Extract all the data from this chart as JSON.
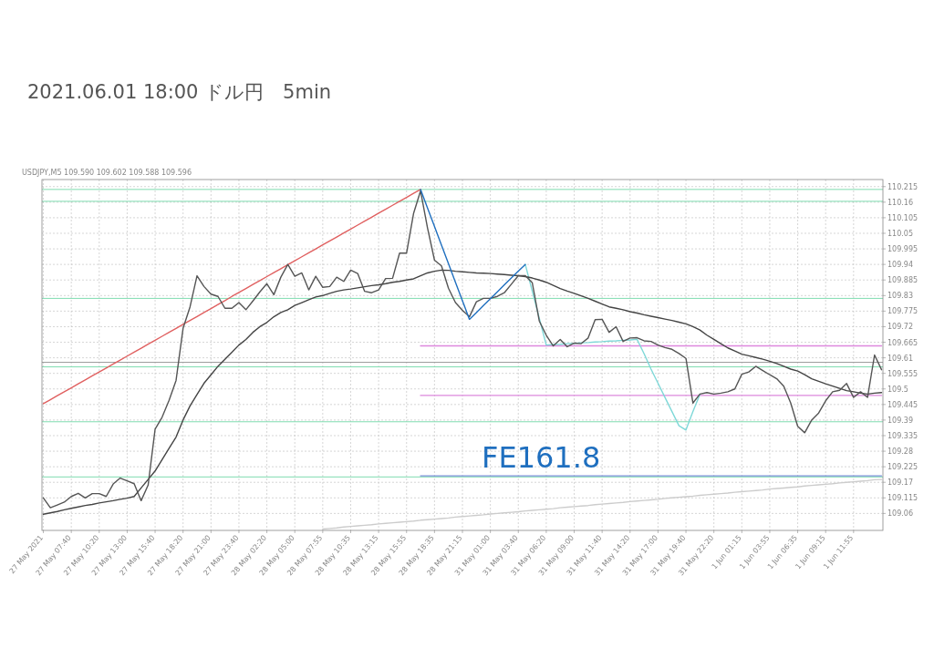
{
  "chart_data": {
    "type": "line",
    "title": "2021.06.01 18:00 ドル円　5min",
    "annotations": [
      "FE161.8",
      "USDJPY,M5 109.590 109.602 109.588 109.596"
    ],
    "categories": [
      "27 May 2021",
      null,
      null,
      null,
      "27 May 07:40",
      null,
      null,
      null,
      "27 May 10:20",
      null,
      null,
      null,
      "27 May 13:00",
      null,
      null,
      null,
      "27 May 15:40",
      null,
      null,
      null,
      "27 May 18:20",
      null,
      null,
      null,
      "27 May 21:00",
      null,
      null,
      null,
      "27 May 23:40",
      null,
      null,
      null,
      "28 May 02:20",
      null,
      null,
      null,
      "28 May 05:00",
      null,
      null,
      null,
      "28 May 07:55",
      null,
      null,
      null,
      "28 May 10:35",
      null,
      null,
      null,
      "28 May 13:15",
      null,
      null,
      null,
      "28 May 15:55",
      null,
      null,
      null,
      "28 May 18:35",
      null,
      null,
      null,
      "28 May 21:15",
      null,
      null,
      null,
      "31 May 01:00",
      null,
      null,
      null,
      "31 May 03:40",
      null,
      null,
      null,
      "31 May 06:20",
      null,
      null,
      null,
      "31 May 09:00",
      null,
      null,
      null,
      "31 May 11:40",
      null,
      null,
      null,
      "31 May 14:20",
      null,
      null,
      null,
      "31 May 17:00",
      null,
      null,
      null,
      "31 May 19:40",
      null,
      null,
      null,
      "31 May 22:20",
      null,
      null,
      null,
      "1 Jun 01:15",
      null,
      null,
      null,
      "1 Jun 03:55",
      null,
      null,
      null,
      "1 Jun 06:35",
      null,
      null,
      null,
      "1 Jun 09:15",
      null,
      null,
      null,
      "1 Jun 11:55",
      null,
      null,
      null,
      null
    ],
    "ylim": [
      109.0,
      110.24
    ],
    "yticks": [
      109.06,
      109.115,
      109.17,
      109.225,
      109.28,
      109.335,
      109.39,
      109.445,
      109.5,
      109.555,
      109.61,
      109.665,
      109.72,
      109.775,
      109.83,
      109.885,
      109.94,
      109.995,
      110.05,
      110.105,
      110.16,
      110.215
    ],
    "grid": true,
    "ref_lines": [
      {
        "axis": "y",
        "value": 110.205,
        "color": "#7fdcb0"
      },
      {
        "axis": "y",
        "value": 110.163,
        "color": "#7fdcb0"
      },
      {
        "axis": "y",
        "value": 109.82,
        "color": "#7fdcb0"
      },
      {
        "axis": "y",
        "value": 109.578,
        "color": "#7fdcb0"
      },
      {
        "axis": "y",
        "value": 109.384,
        "color": "#7fdcb0"
      },
      {
        "axis": "y",
        "value": 109.189,
        "color": "#7fdcb0"
      },
      {
        "axis": "y",
        "value": 109.594,
        "color": "#999999"
      }
    ],
    "series": [
      {
        "color": "#cccccc",
        "values": [
          null,
          null,
          null,
          null,
          null,
          null,
          null,
          null,
          null,
          null,
          null,
          null,
          null,
          null,
          null,
          null,
          null,
          null,
          null,
          null,
          null,
          null,
          null,
          null,
          null,
          null,
          null,
          null,
          null,
          null,
          null,
          null,
          null,
          null,
          null,
          null,
          null,
          null,
          null,
          null,
          109.005,
          109.007,
          109.009,
          109.012,
          109.014,
          109.016,
          109.018,
          109.02,
          109.023,
          109.025,
          109.027,
          109.029,
          109.031,
          109.033,
          109.036,
          109.038,
          109.04,
          109.042,
          109.044,
          109.047,
          109.049,
          109.051,
          109.053,
          109.055,
          109.058,
          109.06,
          109.062,
          109.064,
          109.066,
          109.069,
          109.071,
          109.073,
          109.075,
          109.077,
          109.08,
          109.082,
          109.084,
          109.086,
          109.088,
          109.091,
          109.093,
          109.095,
          109.097,
          109.099,
          109.102,
          109.104,
          109.106,
          109.108,
          109.11,
          109.113,
          109.115,
          109.117,
          109.119,
          109.121,
          109.124,
          109.126,
          109.128,
          109.13,
          109.132,
          109.135,
          109.137,
          109.139,
          109.141,
          109.143,
          109.146,
          109.148,
          109.15,
          109.152,
          109.154,
          109.157,
          109.159,
          109.161,
          109.163,
          109.165,
          109.168,
          109.17,
          109.172,
          109.174,
          109.176,
          109.179,
          109.18
        ]
      },
      {
        "color": "#dd88dd",
        "values": [
          null,
          null,
          null,
          null,
          null,
          null,
          null,
          null,
          null,
          null,
          null,
          null,
          null,
          null,
          null,
          null,
          null,
          null,
          null,
          null,
          null,
          null,
          null,
          null,
          null,
          null,
          null,
          null,
          null,
          null,
          null,
          null,
          null,
          null,
          null,
          null,
          null,
          null,
          null,
          null,
          null,
          null,
          null,
          null,
          null,
          null,
          null,
          null,
          null,
          null,
          null,
          null,
          null,
          null,
          109.652,
          109.652,
          109.652,
          109.652,
          109.652,
          109.652,
          109.652,
          109.652,
          109.652,
          109.652,
          109.652,
          109.652,
          109.652,
          109.652,
          109.652,
          109.652,
          109.652,
          109.652,
          109.652,
          109.652,
          109.652,
          109.652,
          109.652,
          109.652,
          109.652,
          109.652,
          109.652,
          109.652,
          109.652,
          109.652,
          109.652,
          109.652,
          109.652,
          109.652,
          109.652,
          109.652,
          109.652,
          109.652,
          109.652,
          109.652,
          109.652,
          109.652,
          109.652,
          109.652,
          109.652,
          109.652,
          109.652,
          109.652,
          109.652,
          109.652,
          109.652,
          109.652,
          109.652,
          109.652,
          109.652,
          109.652,
          109.652,
          109.652,
          109.652,
          109.652,
          109.652,
          109.652,
          109.652,
          109.652,
          109.652,
          109.652,
          109.652
        ]
      },
      {
        "color": "#dd88dd",
        "values": [
          null,
          null,
          null,
          null,
          null,
          null,
          null,
          null,
          null,
          null,
          null,
          null,
          null,
          null,
          null,
          null,
          null,
          null,
          null,
          null,
          null,
          null,
          null,
          null,
          null,
          null,
          null,
          null,
          null,
          null,
          null,
          null,
          null,
          null,
          null,
          null,
          null,
          null,
          null,
          null,
          null,
          null,
          null,
          null,
          null,
          null,
          null,
          null,
          null,
          null,
          null,
          null,
          null,
          null,
          109.477,
          109.477,
          109.477,
          109.477,
          109.477,
          109.477,
          109.477,
          109.477,
          109.477,
          109.477,
          109.477,
          109.477,
          109.477,
          109.477,
          109.477,
          109.477,
          109.477,
          109.477,
          109.477,
          109.477,
          109.477,
          109.477,
          109.477,
          109.477,
          109.477,
          109.477,
          109.477,
          109.477,
          109.477,
          109.477,
          109.477,
          109.477,
          109.477,
          109.477,
          109.477,
          109.477,
          109.477,
          109.477,
          109.477,
          109.477,
          109.477,
          109.477,
          109.477,
          109.477,
          109.477,
          109.477,
          109.477,
          109.477,
          109.477,
          109.477,
          109.477,
          109.477,
          109.477,
          109.477,
          109.477,
          109.477,
          109.477,
          109.477,
          109.477,
          109.477,
          109.477,
          109.477,
          109.477,
          109.477,
          109.477,
          109.477,
          109.477
        ]
      },
      {
        "color": "#7a8fd8",
        "values": [
          null,
          null,
          null,
          null,
          null,
          null,
          null,
          null,
          null,
          null,
          null,
          null,
          null,
          null,
          null,
          null,
          null,
          null,
          null,
          null,
          null,
          null,
          null,
          null,
          null,
          null,
          null,
          null,
          null,
          null,
          null,
          null,
          null,
          null,
          null,
          null,
          null,
          null,
          null,
          null,
          null,
          null,
          null,
          null,
          null,
          null,
          null,
          null,
          null,
          null,
          null,
          null,
          null,
          null,
          109.193,
          109.193,
          109.193,
          109.193,
          109.193,
          109.193,
          109.193,
          109.193,
          109.193,
          109.193,
          109.193,
          109.193,
          109.193,
          109.193,
          109.193,
          109.193,
          109.193,
          109.193,
          109.193,
          109.193,
          109.193,
          109.193,
          109.193,
          109.193,
          109.193,
          109.193,
          109.193,
          109.193,
          109.193,
          109.193,
          109.193,
          109.193,
          109.193,
          109.193,
          109.193,
          109.193,
          109.193,
          109.193,
          109.193,
          109.193,
          109.193,
          109.193,
          109.193,
          109.193,
          109.193,
          109.193,
          109.193,
          109.193,
          109.193,
          109.193,
          109.193,
          109.193,
          109.193,
          109.193,
          109.193,
          109.193,
          109.193,
          109.193,
          109.193,
          109.193,
          109.193,
          109.193,
          109.193,
          109.193,
          109.193,
          109.193,
          109.193
        ]
      },
      {
        "color": "#e06060",
        "values": [
          109.448,
          109.462,
          109.476,
          109.49,
          109.504,
          109.518,
          109.532,
          109.546,
          109.56,
          109.574,
          109.588,
          109.602,
          109.616,
          109.63,
          109.644,
          109.658,
          109.672,
          109.686,
          109.7,
          109.714,
          109.728,
          109.742,
          109.756,
          109.77,
          109.784,
          109.798,
          109.812,
          109.827,
          109.841,
          109.855,
          109.869,
          109.883,
          109.897,
          109.911,
          109.925,
          109.939,
          109.953,
          109.967,
          109.981,
          109.995,
          110.009,
          110.023,
          110.037,
          110.051,
          110.065,
          110.079,
          110.093,
          110.107,
          110.121,
          110.135,
          110.149,
          110.163,
          110.177,
          110.191,
          110.205,
          null,
          null,
          null,
          null,
          null,
          null,
          null,
          null,
          null,
          null,
          null,
          null,
          null,
          null,
          null,
          null,
          null,
          null,
          null,
          null,
          null,
          null,
          null,
          null,
          null,
          null,
          null,
          null,
          null,
          null,
          null,
          null,
          null,
          null,
          null,
          null,
          null,
          null,
          null,
          null,
          null,
          null,
          null,
          null,
          null,
          null,
          null,
          null,
          null,
          null,
          null,
          null,
          null,
          null,
          null,
          null,
          null,
          null,
          null,
          null,
          null,
          null,
          null,
          null,
          null,
          null
        ]
      },
      {
        "color": "#7fd8d8",
        "values": [
          null,
          null,
          null,
          null,
          null,
          null,
          null,
          null,
          null,
          null,
          null,
          null,
          null,
          null,
          null,
          null,
          null,
          null,
          null,
          null,
          null,
          null,
          null,
          null,
          null,
          null,
          null,
          null,
          null,
          null,
          null,
          null,
          null,
          null,
          null,
          null,
          null,
          null,
          null,
          null,
          null,
          null,
          null,
          null,
          null,
          null,
          null,
          null,
          null,
          null,
          null,
          null,
          null,
          null,
          null,
          null,
          null,
          null,
          null,
          null,
          null,
          null,
          null,
          null,
          null,
          null,
          null,
          null,
          null,
          109.94,
          109.845,
          109.75,
          109.655,
          109.657,
          109.658,
          109.66,
          109.661,
          109.663,
          109.664,
          109.666,
          109.667,
          109.669,
          109.67,
          109.672,
          109.673,
          109.675,
          109.625,
          109.57,
          109.52,
          109.47,
          109.42,
          109.37,
          109.355,
          109.42,
          109.481,
          null,
          null,
          null,
          null,
          null,
          null,
          null,
          null,
          null,
          null,
          null,
          null,
          null,
          null,
          null,
          null,
          null,
          null,
          null,
          null,
          null,
          null,
          null,
          null,
          null,
          null
        ]
      },
      {
        "color": "#444444",
        "values": [
          109.057,
          109.062,
          109.067,
          109.073,
          109.078,
          109.083,
          109.088,
          109.092,
          109.097,
          109.101,
          109.105,
          109.11,
          109.114,
          109.12,
          109.15,
          109.18,
          109.21,
          109.25,
          109.29,
          109.33,
          109.39,
          109.44,
          109.48,
          109.52,
          109.55,
          109.58,
          109.605,
          109.63,
          109.655,
          109.675,
          109.7,
          109.72,
          109.735,
          109.755,
          109.77,
          109.78,
          109.795,
          109.805,
          109.815,
          109.825,
          109.83,
          109.838,
          109.845,
          109.85,
          109.853,
          109.857,
          109.861,
          109.865,
          109.868,
          109.872,
          109.877,
          109.88,
          109.885,
          109.889,
          109.9,
          109.91,
          109.916,
          109.92,
          109.919,
          109.916,
          109.914,
          109.912,
          109.91,
          109.909,
          109.908,
          109.906,
          109.904,
          109.902,
          109.9,
          109.897,
          109.892,
          109.885,
          109.877,
          109.866,
          109.855,
          109.846,
          109.838,
          109.829,
          109.82,
          109.81,
          109.8,
          109.79,
          109.785,
          109.78,
          109.773,
          109.768,
          109.762,
          109.757,
          109.752,
          109.747,
          109.742,
          109.736,
          109.73,
          109.72,
          109.708,
          109.69,
          109.675,
          109.66,
          109.645,
          109.634,
          109.623,
          109.617,
          109.611,
          109.605,
          109.598,
          109.59,
          109.58,
          109.57,
          109.563,
          109.55,
          109.536,
          109.527,
          109.518,
          109.51,
          109.502,
          109.494,
          109.49,
          109.485,
          109.482,
          109.485,
          109.487
        ]
      },
      {
        "color": "#555555",
        "values": [
          109.115,
          109.08,
          109.09,
          109.1,
          109.12,
          109.131,
          109.115,
          109.13,
          109.13,
          109.12,
          109.164,
          109.185,
          109.175,
          109.165,
          109.105,
          109.16,
          109.358,
          109.4,
          109.46,
          109.53,
          109.714,
          109.79,
          109.9,
          109.862,
          109.835,
          109.827,
          109.785,
          109.785,
          109.805,
          109.78,
          109.811,
          109.843,
          109.872,
          109.833,
          109.895,
          109.94,
          109.898,
          109.91,
          109.85,
          109.898,
          109.859,
          109.862,
          109.895,
          109.88,
          109.92,
          109.908,
          109.845,
          109.84,
          109.85,
          109.89,
          109.891,
          109.98,
          109.98,
          110.12,
          110.2,
          110.069,
          109.955,
          109.935,
          109.856,
          109.805,
          109.778,
          109.755,
          109.808,
          109.82,
          109.82,
          109.827,
          109.84,
          109.87,
          109.9,
          109.9,
          109.875,
          109.74,
          109.69,
          109.652,
          109.675,
          109.649,
          109.662,
          109.66,
          109.68,
          109.745,
          109.746,
          109.7,
          109.72,
          109.668,
          109.68,
          109.681,
          109.67,
          109.668,
          109.655,
          109.646,
          109.64,
          109.625,
          109.608,
          109.45,
          109.482,
          109.487,
          109.482,
          109.485,
          109.49,
          109.5,
          109.552,
          109.56,
          109.58,
          109.565,
          109.55,
          109.536,
          109.51,
          109.45,
          109.368,
          109.345,
          109.39,
          109.415,
          109.458,
          109.49,
          109.495,
          109.519,
          109.47,
          109.49,
          109.47,
          109.62,
          109.568
        ]
      },
      {
        "color": "#1f6fbf",
        "values": [
          null,
          null,
          null,
          null,
          null,
          null,
          null,
          null,
          null,
          null,
          null,
          null,
          null,
          null,
          null,
          null,
          null,
          null,
          null,
          null,
          null,
          null,
          null,
          null,
          null,
          null,
          null,
          null,
          null,
          null,
          null,
          null,
          null,
          null,
          null,
          null,
          null,
          null,
          null,
          null,
          null,
          null,
          null,
          null,
          null,
          null,
          null,
          null,
          null,
          null,
          null,
          null,
          null,
          null,
          110.205,
          110.139,
          110.074,
          110.008,
          109.943,
          109.877,
          109.812,
          109.746,
          109.77,
          109.795,
          109.819,
          109.843,
          109.868,
          109.892,
          109.916,
          109.94,
          null,
          null,
          null,
          null,
          null,
          null,
          null,
          null,
          null,
          null,
          null,
          null,
          null,
          null,
          null,
          null,
          null,
          null,
          null,
          null,
          null,
          null,
          null,
          null,
          null,
          null,
          null,
          null,
          null,
          null,
          null,
          null,
          null,
          null,
          null,
          null,
          null,
          null,
          null,
          null,
          null,
          null,
          null,
          null,
          null,
          null,
          null,
          null,
          null,
          null,
          null
        ]
      }
    ]
  }
}
